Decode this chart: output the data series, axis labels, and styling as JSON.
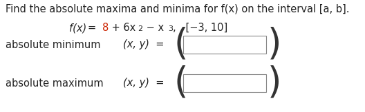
{
  "background_color": "#ffffff",
  "title_text": "Find the absolute maxima and minima for f(x) on the interval [a, b].",
  "row1_label": "absolute minimum",
  "row2_label": "absolute maximum",
  "box_facecolor": "#ffffff",
  "box_edgecolor": "#888888",
  "text_color": "#222222",
  "red_color": "#cc2200",
  "paren_color": "#333333",
  "title_fontsize": 10.5,
  "body_fontsize": 10.5,
  "func_fontsize": 10.5,
  "fig_width": 5.28,
  "fig_height": 1.63,
  "dpi": 100
}
